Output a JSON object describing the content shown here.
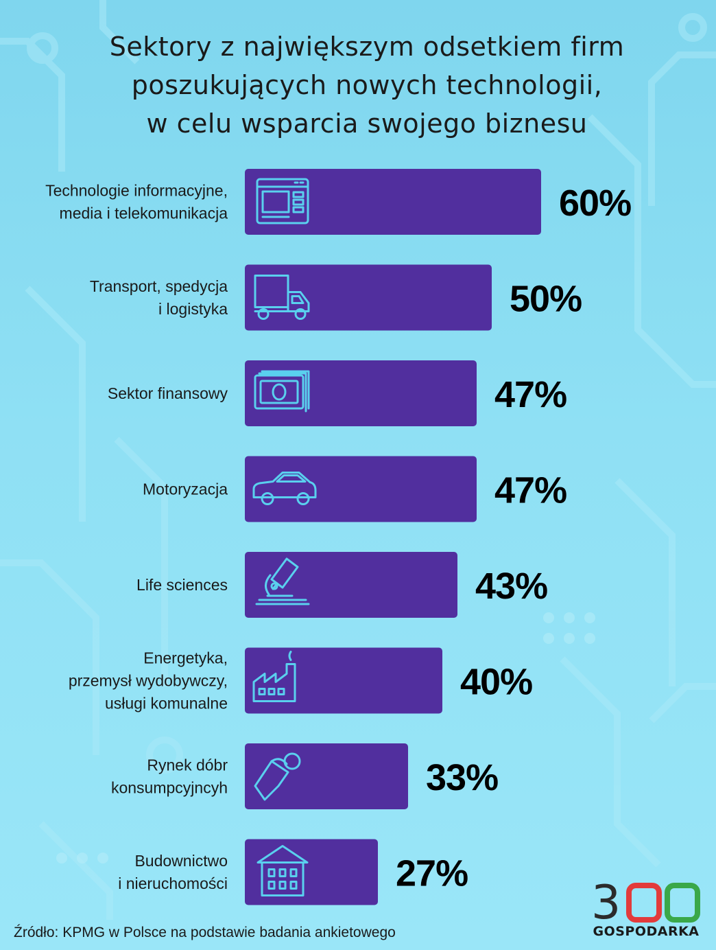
{
  "title_lines": [
    "Sektory z największym odsetkiem firm",
    "poszukujących nowych technologii,",
    "w celu wsparcia swojego biznesu"
  ],
  "source": "Źródło: KPMG w Polsce na podstawie badania ankietowego",
  "logo": {
    "number": "300",
    "caption": "GOSPODARKA"
  },
  "colors": {
    "bar": "#512f9e",
    "icon_stroke": "#5ad0ee",
    "background": "#8fe0f4",
    "logo_dark": "#2b2b2b",
    "logo_red": "#e23b3b",
    "logo_green": "#3aa849"
  },
  "chart_data": {
    "type": "bar",
    "orientation": "horizontal",
    "title": "Sektory z największym odsetkiem firm poszukujących nowych technologii, w celu wsparcia swojego biznesu",
    "categories": [
      [
        "Technologie informacyjne,",
        "media i telekomunikacja"
      ],
      [
        "Transport, spedycja",
        "i logistyka"
      ],
      [
        "Sektor finansowy"
      ],
      [
        "Motoryzacja"
      ],
      [
        "Life sciences"
      ],
      [
        "Energetyka,",
        "przemysł wydobywczy,",
        "usługi komunalne"
      ],
      [
        "Rynek dóbr",
        "konsumpcyjncyh"
      ],
      [
        "Budownictwo",
        "i nieruchomości"
      ]
    ],
    "values": [
      60,
      50,
      47,
      47,
      43,
      40,
      33,
      27
    ],
    "value_labels": [
      "60%",
      "50%",
      "47%",
      "47%",
      "43%",
      "40%",
      "33%",
      "27%"
    ],
    "icons": [
      "browser-window-icon",
      "delivery-truck-icon",
      "banknotes-icon",
      "car-icon",
      "microscope-icon",
      "factory-icon",
      "price-tag-icon",
      "building-icon"
    ],
    "unit": "%",
    "xlim": [
      0,
      60
    ],
    "grid": false,
    "legend": "none"
  }
}
